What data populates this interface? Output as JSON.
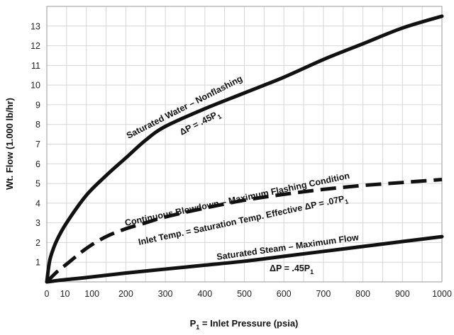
{
  "chart_data": {
    "type": "line",
    "title": "",
    "xlabel": "P",
    "xlabel_sub": "1",
    "xlabel_rest": " = Inlet Pressure (psia)",
    "ylabel": "Wt. Flow (1.000 lb/hr)",
    "xlim": [
      0,
      1000
    ],
    "ylim": [
      0,
      14
    ],
    "grid": true,
    "x_ticks": [
      0,
      10,
      100,
      200,
      300,
      400,
      500,
      600,
      700,
      800,
      900,
      1000
    ],
    "y_ticks": [
      1,
      2,
      3,
      4,
      5,
      6,
      7,
      8,
      9,
      10,
      11,
      12,
      13
    ],
    "series": [
      {
        "style": "solid",
        "points": [
          [
            0,
            0
          ],
          [
            5,
            0.8
          ],
          [
            10,
            1.3
          ],
          [
            25,
            2.1
          ],
          [
            50,
            3.0
          ],
          [
            100,
            4.4
          ],
          [
            150,
            5.4
          ],
          [
            200,
            6.3
          ],
          [
            250,
            7.2
          ],
          [
            300,
            7.9
          ],
          [
            400,
            8.8
          ],
          [
            500,
            9.6
          ],
          [
            600,
            10.4
          ],
          [
            700,
            11.3
          ],
          [
            800,
            12.1
          ],
          [
            900,
            12.9
          ],
          [
            1000,
            13.5
          ]
        ]
      },
      {
        "style": "dashed",
        "points": [
          [
            0,
            0
          ],
          [
            25,
            0.5
          ],
          [
            50,
            0.9
          ],
          [
            100,
            1.7
          ],
          [
            150,
            2.3
          ],
          [
            200,
            2.7
          ],
          [
            250,
            3.0
          ],
          [
            300,
            3.3
          ],
          [
            400,
            3.75
          ],
          [
            500,
            4.15
          ],
          [
            600,
            4.45
          ],
          [
            700,
            4.7
          ],
          [
            800,
            4.9
          ],
          [
            900,
            5.05
          ],
          [
            1000,
            5.2
          ]
        ]
      },
      {
        "style": "solid",
        "points": [
          [
            0,
            0
          ],
          [
            50,
            0.12
          ],
          [
            100,
            0.22
          ],
          [
            200,
            0.45
          ],
          [
            300,
            0.65
          ],
          [
            400,
            0.85
          ],
          [
            500,
            1.05
          ],
          [
            600,
            1.3
          ],
          [
            700,
            1.55
          ],
          [
            800,
            1.8
          ],
          [
            900,
            2.05
          ],
          [
            1000,
            2.3
          ]
        ]
      }
    ],
    "annotations": {
      "sat_water": "Saturated Water – Nonflashing",
      "sat_water_dp_main": "ΔP = .45P",
      "sat_water_dp_sub": "1",
      "blowdown": "Continuous Blowdown – Maximum Flashing Condition",
      "inlet_temp_main": "Inlet Temp. = Saturation Temp. Effective ΔP = .07P",
      "inlet_temp_sub": "1",
      "sat_steam": "Saturated Steam – Maximum Flow",
      "sat_steam_dp_main": "ΔP = .45P",
      "sat_steam_dp_sub": "1"
    }
  }
}
